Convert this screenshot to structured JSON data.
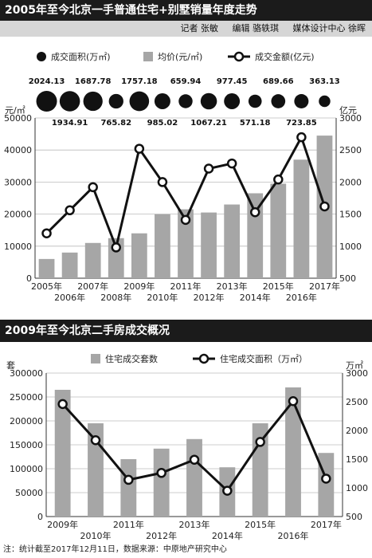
{
  "chart1": {
    "title": "2005年至今北京一手普通住宅+别墅销量年度走势",
    "credits": [
      "记者 张敏",
      "编辑 骆轶琪",
      "媒体设计中心 徐晖"
    ],
    "legend": [
      "成交面积(万㎡)",
      "均价(元/㎡)",
      "成交金额(亿元)"
    ],
    "left_unit": "元/㎡",
    "right_unit": "亿元",
    "colors": {
      "bar": "#a6a6a6",
      "line": "#111111",
      "bubble": "#111111"
    }
  },
  "chart2": {
    "title": "2009年至今北京二手房成交概况",
    "legend": [
      "住宅成交套数",
      "住宅成交面积（万㎡）"
    ],
    "left_unit": "套",
    "right_unit": "万㎡",
    "colors": {
      "bar": "#a6a6a6",
      "line": "#111111"
    }
  },
  "footnote": "注：统计截至2017年12月11日，数据来源：中原地产研究中心",
  "chart_data": [
    {
      "type": "bar",
      "categories": [
        "2005年",
        "2006年",
        "2007年",
        "2008年",
        "2009年",
        "2010年",
        "2011年",
        "2012年",
        "2013年",
        "2014年",
        "2015年",
        "2016年",
        "2017年"
      ],
      "series": [
        {
          "name": "成交面积(万㎡)",
          "kind": "bubble",
          "values": [
            2024.13,
            1934.91,
            1687.78,
            765.82,
            1757.18,
            985.02,
            659.94,
            1067.21,
            977.45,
            571.18,
            689.66,
            723.85,
            363.13
          ]
        },
        {
          "name": "均价(元/㎡)",
          "kind": "bar",
          "axis": "left",
          "values": [
            6000,
            8000,
            11000,
            12500,
            14000,
            20000,
            21500,
            20500,
            23000,
            26500,
            29500,
            37000,
            44500
          ]
        },
        {
          "name": "成交金额(亿元)",
          "kind": "line",
          "axis": "right",
          "values": [
            1200,
            1560,
            1920,
            980,
            2520,
            2000,
            1410,
            2210,
            2290,
            1530,
            2040,
            2700,
            1620
          ]
        }
      ],
      "left_ylim": [
        0,
        50000
      ],
      "left_ticks": [
        "0",
        "10000",
        "20000",
        "30000",
        "40000",
        "50000"
      ],
      "right_ylim": [
        500,
        3000
      ],
      "right_ticks": [
        "500",
        "1000",
        "1500",
        "2000",
        "2500",
        "3000"
      ],
      "grid": true
    },
    {
      "type": "bar",
      "categories": [
        "2009年",
        "2010年",
        "2011年",
        "2012年",
        "2013年",
        "2014年",
        "2015年",
        "2016年",
        "2017年"
      ],
      "series": [
        {
          "name": "住宅成交套数",
          "kind": "bar",
          "axis": "left",
          "values": [
            265000,
            195000,
            120000,
            142000,
            162000,
            103000,
            195000,
            270000,
            133000
          ]
        },
        {
          "name": "住宅成交面积（万㎡）",
          "kind": "line",
          "axis": "right",
          "values": [
            2460,
            1830,
            1140,
            1260,
            1490,
            950,
            1800,
            2510,
            1160
          ]
        }
      ],
      "left_ylim": [
        0,
        300000
      ],
      "left_ticks": [
        "0",
        "50000",
        "100000",
        "150000",
        "200000",
        "250000",
        "300000"
      ],
      "right_ylim": [
        500,
        3000
      ],
      "right_ticks": [
        "500",
        "1000",
        "1500",
        "2000",
        "2500",
        "3000"
      ],
      "grid": true
    }
  ]
}
